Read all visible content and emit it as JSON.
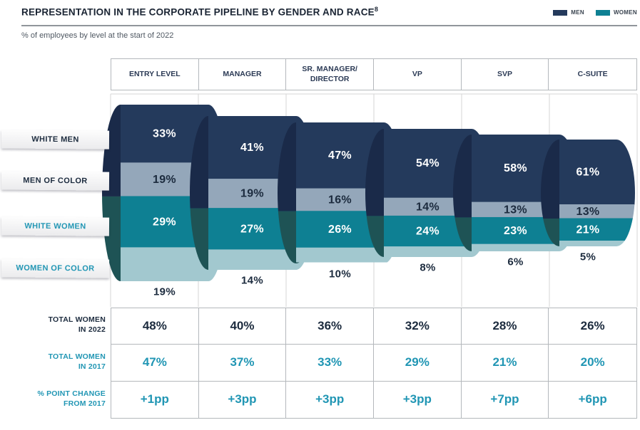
{
  "chart_data": {
    "type": "bar",
    "subtype": "stacked-horizontal-3d-pipeline",
    "title": "REPRESENTATION IN THE CORPORATE PIPELINE BY GENDER AND RACE",
    "title_superscript": "8",
    "subtitle": "% of employees by level at the start of 2022",
    "unit": "%",
    "legend": [
      {
        "label": "MEN",
        "color": "#243a5c"
      },
      {
        "label": "WOMEN",
        "color": "#0e8093"
      }
    ],
    "categories": [
      "ENTRY LEVEL",
      "MANAGER",
      "SR. MANAGER/ DIRECTOR",
      "VP",
      "SVP",
      "C-SUITE"
    ],
    "series": [
      {
        "name": "WHITE MEN",
        "color": "#243a5c",
        "cap_color": "#1a2a49",
        "label_color": "#ffffff",
        "ribbon_text_color": "#1c2b3e",
        "label_outside": false,
        "values": [
          33,
          41,
          47,
          54,
          58,
          61
        ]
      },
      {
        "name": "MEN OF COLOR",
        "color": "#94a7ba",
        "cap_color": "#1a2a49",
        "label_color": "#1c2b3e",
        "ribbon_text_color": "#1c2b3e",
        "label_outside": false,
        "values": [
          19,
          19,
          16,
          14,
          13,
          13
        ]
      },
      {
        "name": "WHITE WOMEN",
        "color": "#0e8093",
        "cap_color": "#1e5355",
        "label_color": "#ffffff",
        "ribbon_text_color": "#2196b4",
        "label_outside": false,
        "values": [
          29,
          27,
          26,
          24,
          23,
          21
        ]
      },
      {
        "name": "WOMEN OF COLOR",
        "color": "#a2c8cf",
        "cap_color": "#1e5355",
        "label_color": "#1c2b3e",
        "ribbon_text_color": "#2196b4",
        "label_outside": true,
        "values": [
          19,
          14,
          10,
          8,
          6,
          5
        ]
      }
    ],
    "summary_rows": [
      {
        "label_line1": "TOTAL WOMEN",
        "label_line2": "IN 2022",
        "text_color": "#1c2b3e",
        "values": [
          "48%",
          "40%",
          "36%",
          "32%",
          "28%",
          "26%"
        ]
      },
      {
        "label_line1": "TOTAL WOMEN",
        "label_line2": "IN 2017",
        "text_color": "#2196b4",
        "values": [
          "47%",
          "37%",
          "33%",
          "29%",
          "21%",
          "20%"
        ]
      },
      {
        "label_line1": "% POINT CHANGE",
        "label_line2": "FROM 2017",
        "text_color": "#2196b4",
        "values": [
          "+1pp",
          "+3pp",
          "+3pp",
          "+3pp",
          "+7pp",
          "+6pp"
        ]
      }
    ]
  }
}
